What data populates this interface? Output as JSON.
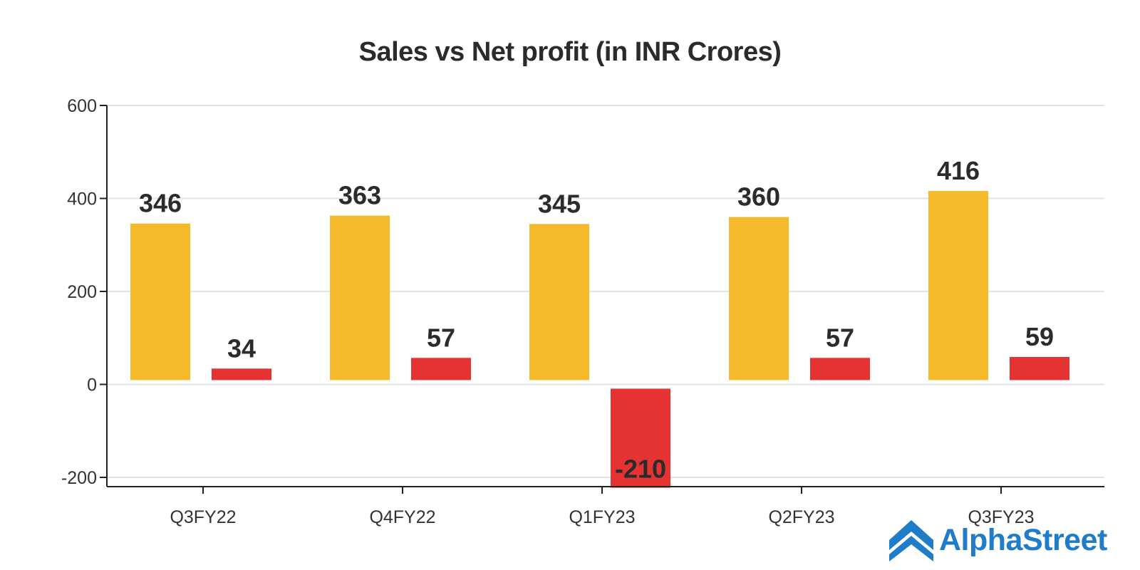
{
  "chart_data": {
    "type": "bar",
    "title": "Sales vs Net profit (in INR Crores)",
    "categories": [
      "Q3FY22",
      "Q4FY22",
      "Q1FY23",
      "Q2FY23",
      "Q3FY23"
    ],
    "series": [
      {
        "values": [
          346,
          363,
          345,
          360,
          416
        ],
        "color": "#F5BA2B"
      },
      {
        "values": [
          34,
          57,
          -210,
          57,
          59
        ],
        "color": "#E53333"
      }
    ],
    "yticks": [
      600,
      400,
      200,
      0,
      -200
    ],
    "ylim": [
      -200,
      600
    ],
    "grid": true
  },
  "brand": {
    "name": "AlphaStreet",
    "color": "#1E7CC8",
    "icon": "alphastreet-chevron-logo"
  }
}
